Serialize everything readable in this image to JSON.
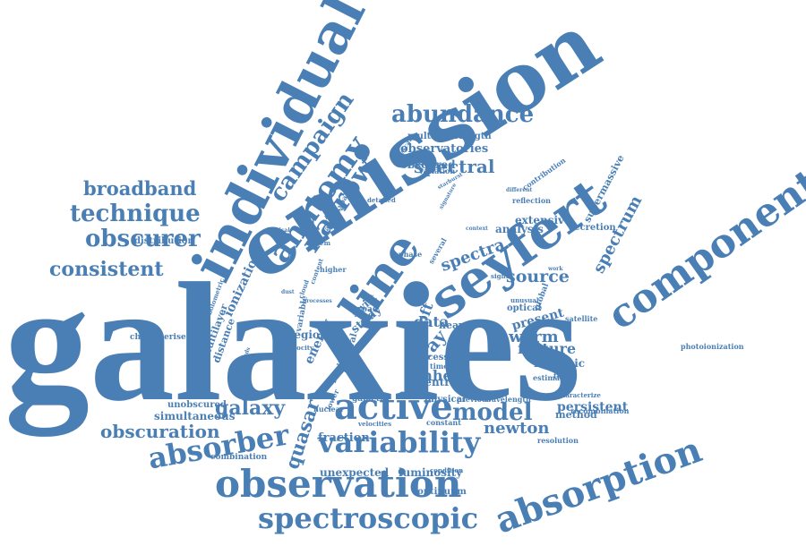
{
  "accent_color": "#4a7fb5",
  "words": [
    "galaxies",
    "emission",
    "individual",
    "seyfert",
    "component",
    "absorption",
    "observation",
    "spectroscopic",
    "variability",
    "active",
    "line",
    "anatomy",
    "narrow",
    "campaign",
    "abundance",
    "technique",
    "obscurer",
    "broadband",
    "consistent",
    "absorber",
    "quasar",
    "model",
    "galaxy",
    "obscuration",
    "newton",
    "spectral",
    "spectra",
    "source",
    "spectrum",
    "ray",
    "ionization",
    "multiwavelength",
    "observatories",
    "obscured",
    "supermassive",
    "accretion",
    "analysis",
    "extensive",
    "photoionization",
    "unexpected",
    "luminosity",
    "persistent",
    "simultaneous",
    "unobscured",
    "warm",
    "feature",
    "phhe",
    "study",
    "swift",
    "soft",
    "data",
    "excess",
    "intrinsic",
    "fraction",
    "combination",
    "characterise",
    "distribution",
    "present",
    "central",
    "physical",
    "continuum",
    "resolution",
    "recombination",
    "method",
    "characterize",
    "optical",
    "satellite",
    "region",
    "energy",
    "distance",
    "multilayer",
    "variable",
    "velocity",
    "galactic",
    "previous",
    "wavelength",
    "reflection",
    "contribution",
    "variation",
    "timescale",
    "archetypal",
    "detailed",
    "heavy",
    "broad",
    "higher",
    "phase",
    "system",
    "condition",
    "classical",
    "several",
    "time",
    "term",
    "estimate",
    "constant",
    "archival",
    "result",
    "lower",
    "nuclear",
    "velocities",
    "global",
    "different",
    "starburst",
    "signature",
    "unusual",
    "sight",
    "work",
    "bolometric",
    "clouds",
    "change",
    "cloud",
    "content",
    "context",
    "limited",
    "processes",
    "dust",
    "field"
  ]
}
